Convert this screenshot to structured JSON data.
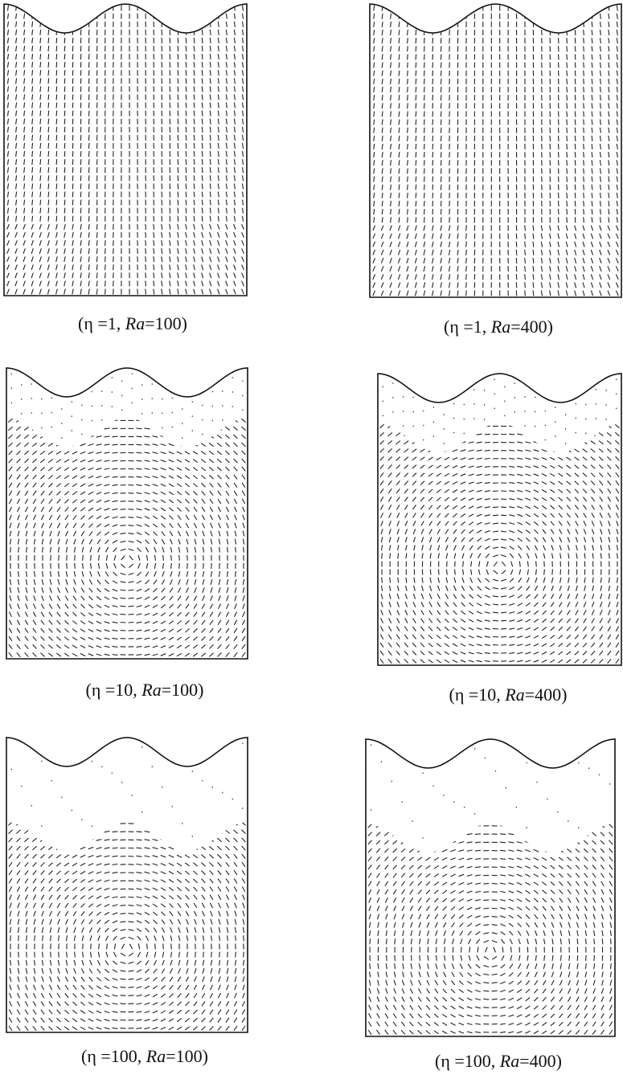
{
  "figure": {
    "panels": [
      {
        "caption": {
          "pre": "(η =1, ",
          "var": "Ra",
          "post": "=100)"
        }
      },
      {
        "caption": {
          "pre": "(η =1, ",
          "var": "Ra",
          "post": "=400)"
        }
      },
      {
        "caption": {
          "pre": "(η =10, ",
          "var": "Ra",
          "post": "=100)"
        }
      },
      {
        "caption": {
          "pre": "(η =10, ",
          "var": "Ra",
          "post": "=400)"
        }
      },
      {
        "caption": {
          "pre": "(η =100, ",
          "var": "Ra",
          "post": "=100)"
        }
      },
      {
        "caption": {
          "pre": "(η =100, ",
          "var": "Ra",
          "post": "=400)"
        }
      }
    ]
  }
}
